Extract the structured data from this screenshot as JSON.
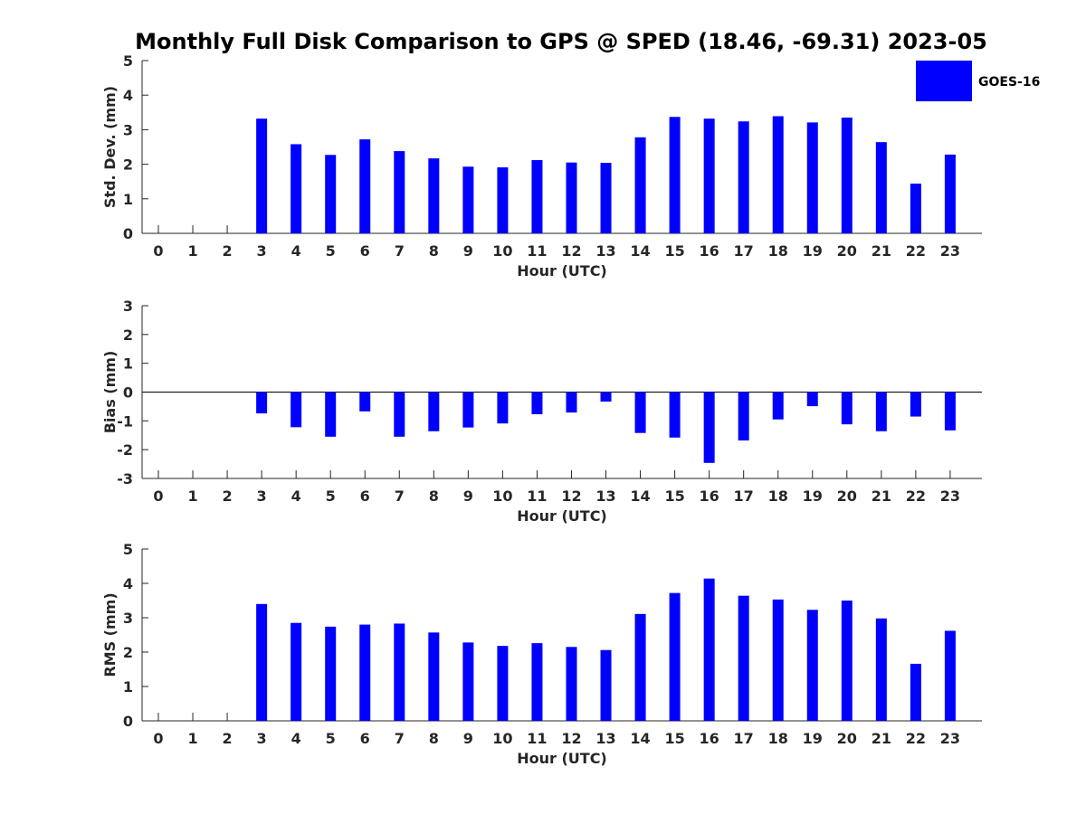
{
  "title": "Monthly Full Disk Comparison to GPS @ SPED (18.46, -69.31) 2023-05",
  "legend": {
    "label": "GOES-16",
    "color": "#0000ff",
    "placement": "top-right"
  },
  "chart_data": [
    {
      "type": "bar",
      "title": "Monthly Full Disk Comparison to GPS @ SPED (18.46, -69.31) 2023-05",
      "xlabel": "Hour (UTC)",
      "ylabel": "Std. Dev. (mm)",
      "ylim": [
        0,
        5
      ],
      "yticks": [
        0,
        1,
        2,
        3,
        4,
        5
      ],
      "grid": false,
      "categories": [
        "0",
        "1",
        "2",
        "3",
        "4",
        "5",
        "6",
        "7",
        "8",
        "9",
        "10",
        "11",
        "12",
        "13",
        "14",
        "15",
        "16",
        "17",
        "18",
        "19",
        "20",
        "21",
        "22",
        "23"
      ],
      "series": [
        {
          "name": "GOES-16",
          "color": "#0000ff",
          "values": [
            null,
            null,
            null,
            3.32,
            2.58,
            2.27,
            2.72,
            2.38,
            2.17,
            1.93,
            1.91,
            2.12,
            2.05,
            2.04,
            2.78,
            3.37,
            3.32,
            3.24,
            3.39,
            3.21,
            3.35,
            2.64,
            1.44,
            2.28
          ]
        }
      ]
    },
    {
      "type": "bar",
      "xlabel": "Hour (UTC)",
      "ylabel": "Bias (mm)",
      "ylim": [
        -3,
        3
      ],
      "yticks": [
        -3,
        -2,
        -1,
        0,
        1,
        2,
        3
      ],
      "grid": false,
      "zero_line": true,
      "categories": [
        "0",
        "1",
        "2",
        "3",
        "4",
        "5",
        "6",
        "7",
        "8",
        "9",
        "10",
        "11",
        "12",
        "13",
        "14",
        "15",
        "16",
        "17",
        "18",
        "19",
        "20",
        "21",
        "22",
        "23"
      ],
      "series": [
        {
          "name": "GOES-16",
          "color": "#0000ff",
          "values": [
            null,
            null,
            null,
            -0.74,
            -1.22,
            -1.55,
            -0.67,
            -1.55,
            -1.36,
            -1.23,
            -1.09,
            -0.77,
            -0.71,
            -0.33,
            -1.42,
            -1.58,
            -2.46,
            -1.68,
            -0.95,
            -0.49,
            -1.12,
            -1.36,
            -0.85,
            -1.33
          ]
        }
      ]
    },
    {
      "type": "bar",
      "xlabel": "Hour (UTC)",
      "ylabel": "RMS (mm)",
      "ylim": [
        0,
        5
      ],
      "yticks": [
        0,
        1,
        2,
        3,
        4,
        5
      ],
      "grid": false,
      "categories": [
        "0",
        "1",
        "2",
        "3",
        "4",
        "5",
        "6",
        "7",
        "8",
        "9",
        "10",
        "11",
        "12",
        "13",
        "14",
        "15",
        "16",
        "17",
        "18",
        "19",
        "20",
        "21",
        "22",
        "23"
      ],
      "series": [
        {
          "name": "GOES-16",
          "color": "#0000ff",
          "values": [
            null,
            null,
            null,
            3.4,
            2.85,
            2.74,
            2.8,
            2.83,
            2.57,
            2.28,
            2.18,
            2.26,
            2.15,
            2.06,
            3.11,
            3.72,
            4.14,
            3.64,
            3.53,
            3.23,
            3.5,
            2.98,
            1.66,
            2.62
          ]
        }
      ]
    }
  ]
}
